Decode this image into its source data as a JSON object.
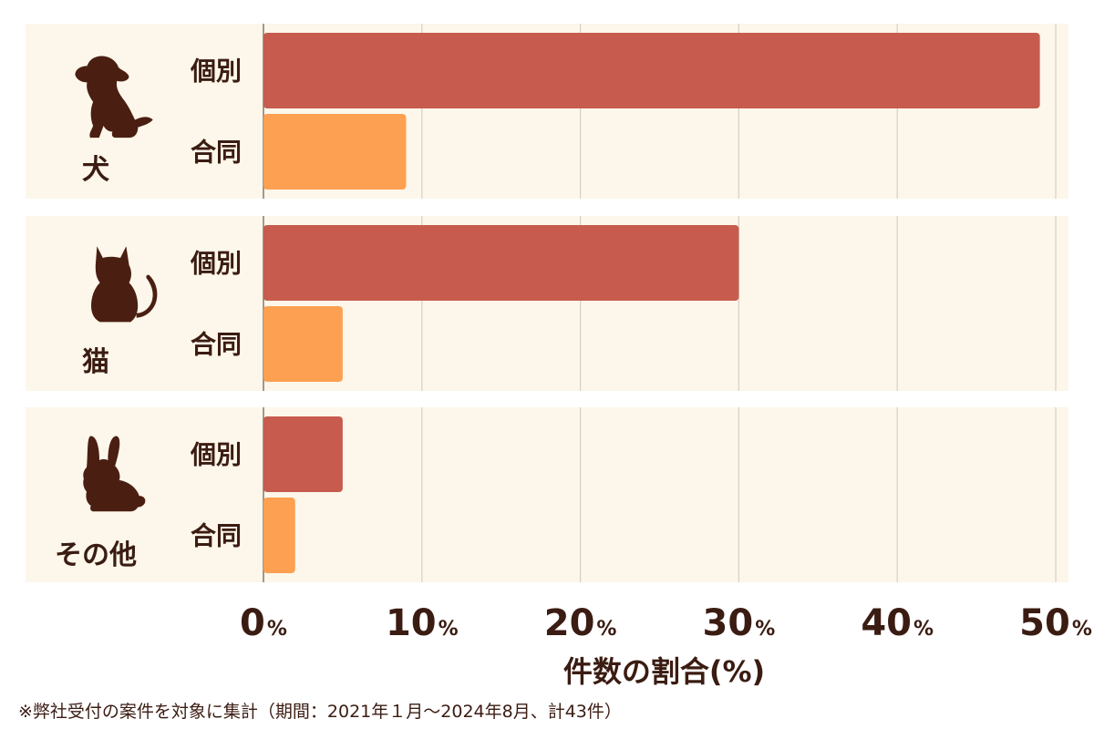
{
  "chart_data": {
    "type": "bar",
    "orientation": "horizontal",
    "groups": [
      {
        "label": "犬",
        "icon": "dog-icon",
        "bars": [
          {
            "label": "個別",
            "value": 49
          },
          {
            "label": "合同",
            "value": 9
          }
        ]
      },
      {
        "label": "猫",
        "icon": "cat-icon",
        "bars": [
          {
            "label": "個別",
            "value": 30
          },
          {
            "label": "合同",
            "value": 5
          }
        ]
      },
      {
        "label": "その他",
        "icon": "rabbit-icon",
        "bars": [
          {
            "label": "個別",
            "value": 5
          },
          {
            "label": "合同",
            "value": 2
          }
        ]
      }
    ],
    "series_colors": {
      "個別": "#c75c4e",
      "合同": "#fda052"
    },
    "xlim": [
      0,
      50
    ],
    "ticks": [
      0,
      10,
      20,
      30,
      40,
      50
    ],
    "tick_unit": "%",
    "xlabel": "件数の割合(%)",
    "grid": true
  },
  "footnote": "※弊社受付の案件を対象に集計（期間：2021年１月〜2024年8月、計43件）"
}
